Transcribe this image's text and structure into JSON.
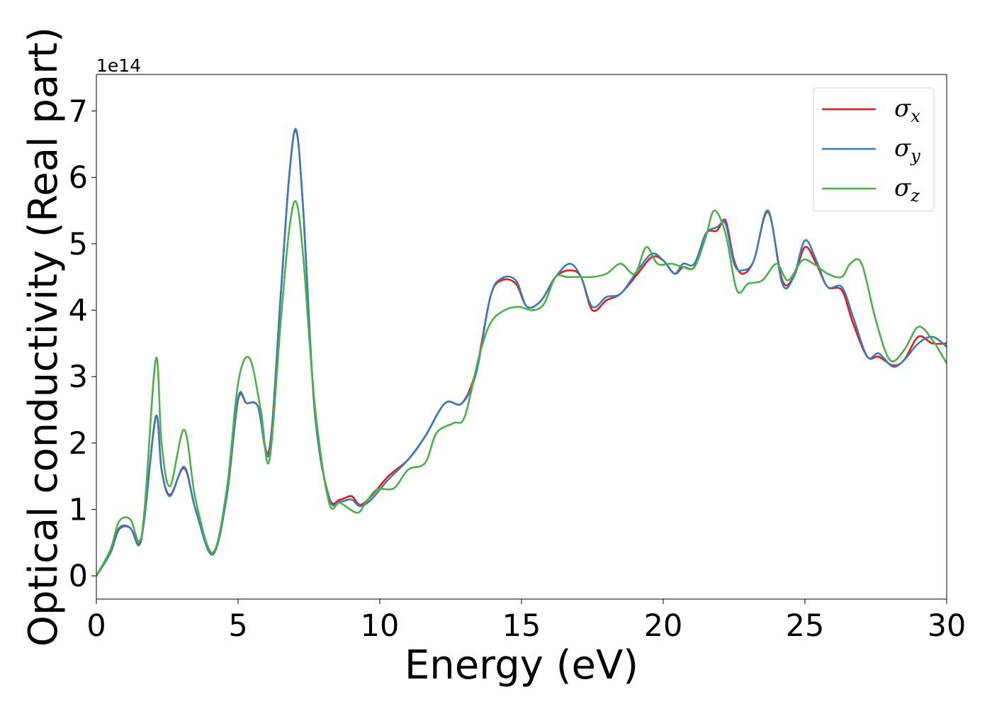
{
  "chart_data": {
    "type": "line",
    "xlabel": "Energy (eV)",
    "ylabel": "Optical conductivity (Real part)",
    "y_offset_label": "1e14",
    "xlim": [
      0,
      30
    ],
    "ylim": [
      -0.35,
      7.55
    ],
    "xticks": [
      0,
      5,
      10,
      15,
      20,
      25,
      30
    ],
    "yticks": [
      0,
      1,
      2,
      3,
      4,
      5,
      6,
      7
    ],
    "legend_position": "top-right",
    "grid": false,
    "series": [
      {
        "name": "σx",
        "symbol": "σ",
        "subscript": "x",
        "color": "#e41a1c",
        "x": [
          0,
          0.5,
          0.8,
          1.2,
          1.5,
          1.7,
          2.1,
          2.3,
          2.6,
          3.1,
          3.5,
          4.1,
          4.6,
          5.0,
          5.3,
          5.7,
          6.1,
          6.5,
          6.8,
          7.05,
          7.3,
          7.7,
          8.2,
          8.6,
          9.0,
          9.3,
          9.7,
          10.3,
          11.0,
          11.6,
          12.3,
          12.9,
          13.4,
          13.9,
          14.3,
          14.8,
          15.2,
          15.7,
          16.2,
          16.7,
          17.1,
          17.5,
          18.0,
          18.5,
          19.1,
          19.6,
          20.0,
          20.4,
          20.7,
          21.1,
          21.5,
          21.9,
          22.2,
          22.5,
          22.8,
          23.2,
          23.7,
          24.2,
          24.6,
          25.0,
          25.4,
          25.8,
          26.3,
          26.7,
          27.2,
          27.6,
          28.1,
          28.5,
          29.0,
          29.5,
          30.0
        ],
        "values": [
          0,
          0.35,
          0.7,
          0.72,
          0.48,
          0.9,
          2.4,
          1.6,
          1.22,
          1.62,
          1.0,
          0.32,
          1.2,
          2.65,
          2.6,
          2.55,
          1.9,
          4.2,
          6.0,
          6.7,
          5.5,
          2.5,
          1.2,
          1.15,
          1.2,
          1.07,
          1.2,
          1.5,
          1.75,
          2.1,
          2.6,
          2.6,
          3.1,
          4.2,
          4.45,
          4.4,
          4.05,
          4.15,
          4.5,
          4.6,
          4.5,
          4.0,
          4.15,
          4.25,
          4.55,
          4.8,
          4.75,
          4.55,
          4.65,
          4.65,
          5.15,
          5.2,
          5.35,
          4.75,
          4.55,
          4.75,
          5.48,
          4.45,
          4.5,
          4.95,
          4.7,
          4.35,
          4.3,
          3.8,
          3.3,
          3.3,
          3.17,
          3.25,
          3.6,
          3.5,
          3.5
        ]
      },
      {
        "name": "σy",
        "symbol": "σ",
        "subscript": "y",
        "color": "#377eb8",
        "x": [
          0,
          0.5,
          0.8,
          1.2,
          1.5,
          1.7,
          2.1,
          2.3,
          2.6,
          3.1,
          3.5,
          4.1,
          4.6,
          5.0,
          5.3,
          5.7,
          6.1,
          6.5,
          6.8,
          7.05,
          7.3,
          7.7,
          8.2,
          8.6,
          9.0,
          9.3,
          9.7,
          10.3,
          11.0,
          11.6,
          12.3,
          12.9,
          13.4,
          13.9,
          14.3,
          14.8,
          15.2,
          15.7,
          16.2,
          16.7,
          17.1,
          17.5,
          18.0,
          18.5,
          19.1,
          19.6,
          20.0,
          20.4,
          20.7,
          21.1,
          21.5,
          21.9,
          22.2,
          22.5,
          22.8,
          23.2,
          23.7,
          24.2,
          24.6,
          25.0,
          25.4,
          25.8,
          26.3,
          26.7,
          27.2,
          27.6,
          28.1,
          28.5,
          29.0,
          29.5,
          30.0
        ],
        "values": [
          0,
          0.35,
          0.72,
          0.72,
          0.46,
          0.88,
          2.4,
          1.6,
          1.2,
          1.64,
          1.0,
          0.32,
          1.2,
          2.68,
          2.6,
          2.55,
          1.85,
          4.2,
          6.0,
          6.72,
          5.5,
          2.5,
          1.18,
          1.12,
          1.15,
          1.05,
          1.15,
          1.45,
          1.75,
          2.1,
          2.6,
          2.6,
          3.05,
          4.2,
          4.48,
          4.45,
          4.05,
          4.15,
          4.5,
          4.7,
          4.5,
          4.05,
          4.2,
          4.25,
          4.6,
          4.85,
          4.75,
          4.55,
          4.7,
          4.7,
          5.15,
          5.25,
          5.3,
          4.7,
          4.6,
          4.75,
          5.5,
          4.4,
          4.5,
          5.05,
          4.75,
          4.35,
          4.35,
          3.9,
          3.3,
          3.35,
          3.15,
          3.25,
          3.5,
          3.6,
          3.45
        ]
      },
      {
        "name": "σz",
        "symbol": "σ",
        "subscript": "z",
        "color": "#4daf4a",
        "x": [
          0,
          0.5,
          0.8,
          1.2,
          1.5,
          1.7,
          2.1,
          2.3,
          2.6,
          3.1,
          3.5,
          4.1,
          4.6,
          5.0,
          5.4,
          5.8,
          6.1,
          6.5,
          6.8,
          7.05,
          7.3,
          7.7,
          8.2,
          8.6,
          9.2,
          9.5,
          9.9,
          10.5,
          11.0,
          11.6,
          12.0,
          12.6,
          13.0,
          13.5,
          13.9,
          14.4,
          14.9,
          15.4,
          15.8,
          16.2,
          16.6,
          17.1,
          17.5,
          18.0,
          18.5,
          19.0,
          19.4,
          19.8,
          20.3,
          20.7,
          21.1,
          21.5,
          21.8,
          22.2,
          22.6,
          23.0,
          23.5,
          24.0,
          24.4,
          24.9,
          25.3,
          25.8,
          26.3,
          26.6,
          27.0,
          27.5,
          28.0,
          28.5,
          29.0,
          29.5,
          30.0
        ],
        "values": [
          0,
          0.4,
          0.82,
          0.85,
          0.52,
          1.0,
          3.27,
          2.0,
          1.35,
          2.2,
          1.15,
          0.35,
          1.3,
          2.9,
          3.28,
          2.5,
          1.73,
          3.8,
          5.2,
          5.63,
          4.8,
          2.6,
          1.12,
          1.1,
          0.95,
          1.1,
          1.3,
          1.32,
          1.6,
          1.7,
          2.15,
          2.3,
          2.4,
          3.3,
          3.8,
          4.0,
          4.05,
          4.0,
          4.1,
          4.5,
          4.5,
          4.5,
          4.5,
          4.55,
          4.7,
          4.55,
          4.95,
          4.7,
          4.7,
          4.65,
          4.65,
          5.1,
          5.5,
          5.15,
          4.3,
          4.4,
          4.45,
          4.7,
          4.45,
          4.75,
          4.7,
          4.55,
          4.5,
          4.7,
          4.7,
          3.85,
          3.25,
          3.4,
          3.75,
          3.55,
          3.2
        ]
      }
    ]
  }
}
